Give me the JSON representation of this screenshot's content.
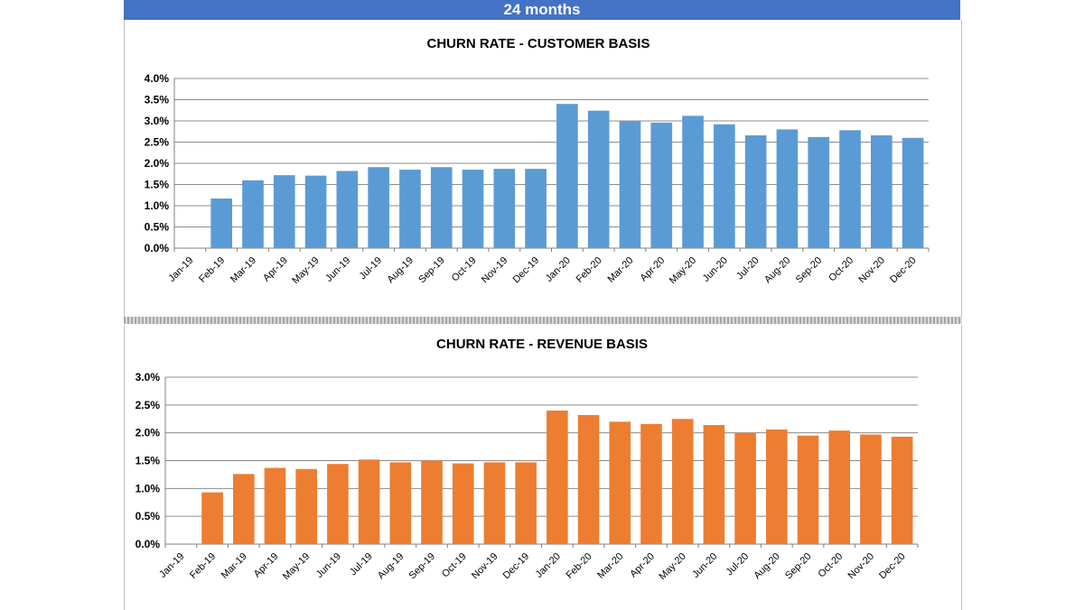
{
  "header": {
    "title": "24 months"
  },
  "colors": {
    "header_bg": "#4472c4",
    "customer_bar": "#5b9bd5",
    "revenue_bar": "#ed7d31"
  },
  "chart_data": [
    {
      "type": "bar",
      "title": "CHURN RATE - CUSTOMER BASIS",
      "categories": [
        "Jan-19",
        "Feb-19",
        "Mar-19",
        "Apr-19",
        "May-19",
        "Jun-19",
        "Jul-19",
        "Aug-19",
        "Sep-19",
        "Oct-19",
        "Nov-19",
        "Dec-19",
        "Jan-20",
        "Feb-20",
        "Mar-20",
        "Apr-20",
        "May-20",
        "Jun-20",
        "Jul-20",
        "Aug-20",
        "Sep-20",
        "Oct-20",
        "Nov-20",
        "Dec-20"
      ],
      "values": [
        0,
        1.17,
        1.6,
        1.72,
        1.71,
        1.82,
        1.91,
        1.85,
        1.91,
        1.85,
        1.87,
        1.87,
        3.4,
        3.24,
        3.0,
        2.96,
        3.12,
        2.92,
        2.66,
        2.8,
        2.62,
        2.78,
        2.66,
        2.6
      ],
      "ylim": [
        0,
        4.0
      ],
      "yticks": [
        "0.0%",
        "0.5%",
        "1.0%",
        "1.5%",
        "2.0%",
        "2.5%",
        "3.0%",
        "3.5%",
        "4.0%"
      ],
      "grid": true
    },
    {
      "type": "bar",
      "title": "CHURN RATE - REVENUE BASIS",
      "categories": [
        "Jan-19",
        "Feb-19",
        "Mar-19",
        "Apr-19",
        "May-19",
        "Jun-19",
        "Jul-19",
        "Aug-19",
        "Sep-19",
        "Oct-19",
        "Nov-19",
        "Dec-19",
        "Jan-20",
        "Feb-20",
        "Mar-20",
        "Apr-20",
        "May-20",
        "Jun-20",
        "Jul-20",
        "Aug-20",
        "Sep-20",
        "Oct-20",
        "Nov-20",
        "Dec-20"
      ],
      "values": [
        0,
        0.93,
        1.26,
        1.37,
        1.35,
        1.44,
        1.52,
        1.47,
        1.5,
        1.45,
        1.47,
        1.47,
        2.4,
        2.32,
        2.2,
        2.16,
        2.25,
        2.14,
        2.0,
        2.06,
        1.95,
        2.04,
        1.97,
        1.93
      ],
      "ylim": [
        0,
        3.0
      ],
      "yticks": [
        "0.0%",
        "0.5%",
        "1.0%",
        "1.5%",
        "2.0%",
        "2.5%",
        "3.0%"
      ],
      "grid": true
    }
  ]
}
